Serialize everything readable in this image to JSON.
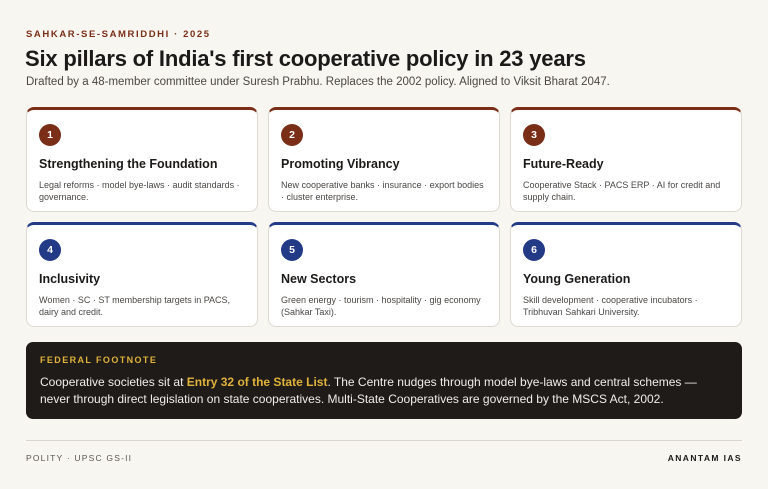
{
  "header": {
    "eyebrow": "SAHKAR-SE-SAMRIDDHI · 2025",
    "title": "Six pillars of India's first cooperative policy in 23 years",
    "subtitle": "Drafted by a 48-member committee under Suresh Prabhu. Replaces the 2002 policy. Aligned to Viksit Bharat 2047."
  },
  "colors": {
    "brown_accent": "#7a2e18",
    "blue_accent": "#233a86",
    "highlight": "#e0b23a",
    "footnote_bg": "#1e1b19"
  },
  "pillars": [
    {
      "number": "1",
      "title": "Strengthening the Foundation",
      "description": "Legal reforms · model bye-laws · audit standards · governance."
    },
    {
      "number": "2",
      "title": "Promoting Vibrancy",
      "description": "New cooperative banks · insurance · export bodies · cluster enterprise."
    },
    {
      "number": "3",
      "title": "Future-Ready",
      "description": "Cooperative Stack · PACS ERP · AI for credit and supply chain."
    },
    {
      "number": "4",
      "title": "Inclusivity",
      "description": "Women · SC · ST membership targets in PACS, dairy and credit."
    },
    {
      "number": "5",
      "title": "New Sectors",
      "description": "Green energy · tourism · hospitality · gig economy (Sahkar Taxi)."
    },
    {
      "number": "6",
      "title": "Young Generation",
      "description": "Skill development · cooperative incubators · Tribhuvan Sahkari University."
    }
  ],
  "footnote": {
    "label": "FEDERAL FOOTNOTE",
    "text_before": "Cooperative societies sit at ",
    "highlight": "Entry 32 of the State List",
    "text_after": ". The Centre nudges through model bye-laws and central schemes — never through direct legislation on state cooperatives. Multi-State Cooperatives are governed by the MSCS Act, 2002."
  },
  "footer": {
    "left": "POLITY · UPSC GS-II",
    "right": "ANANTAM IAS"
  }
}
